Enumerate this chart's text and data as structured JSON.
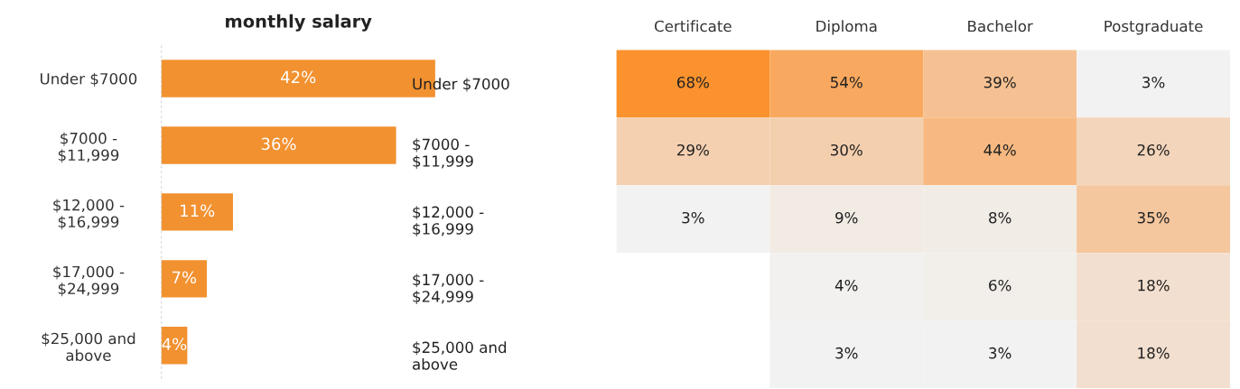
{
  "chart_data": [
    {
      "type": "bar",
      "orientation": "horizontal",
      "title": "monthly salary",
      "categories": [
        "Under $7000",
        "$7000 -\n$11,999",
        "$12,000 -\n$16,999",
        "$17,000 -\n$24,999",
        "$25,000 and\nabove"
      ],
      "values": [
        42,
        36,
        11,
        7,
        4
      ],
      "value_labels": [
        "42%",
        "36%",
        "11%",
        "7%",
        "4%"
      ],
      "color": "#f29130",
      "xlim": [
        0,
        42
      ],
      "tick_labels": "y",
      "grid": false,
      "legend": false
    },
    {
      "type": "heatmap",
      "categories": [
        "Certificate",
        "Diploma",
        "Bachelor",
        "Postgraduate"
      ],
      "y_categories": [
        "Under $7000",
        "$7000 -\n$11,999",
        "$12,000 -\n$16,999",
        "$17,000 -\n$24,999",
        "$25,000 and\nabove"
      ],
      "cells": [
        [
          68,
          54,
          39,
          3
        ],
        [
          29,
          30,
          44,
          26
        ],
        [
          3,
          9,
          8,
          35
        ],
        [
          null,
          4,
          6,
          18
        ],
        [
          null,
          3,
          3,
          18
        ]
      ],
      "cell_labels": [
        [
          "68%",
          "54%",
          "39%",
          "3%"
        ],
        [
          "29%",
          "30%",
          "44%",
          "26%"
        ],
        [
          "3%",
          "9%",
          "8%",
          "35%"
        ],
        [
          null,
          "4%",
          "6%",
          "18%"
        ],
        [
          null,
          "3%",
          "3%",
          "18%"
        ]
      ]
    }
  ]
}
